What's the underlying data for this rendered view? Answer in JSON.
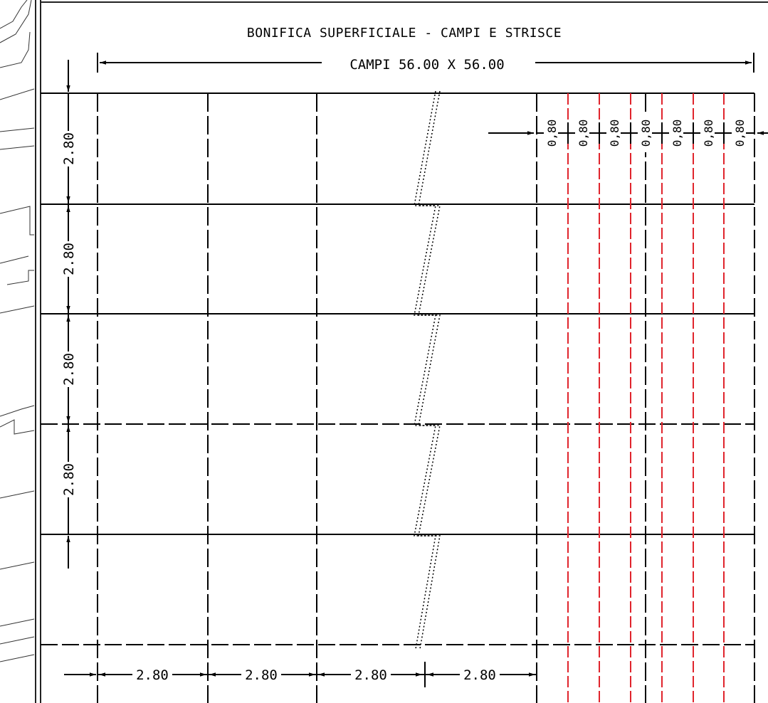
{
  "title": "BONIFICA SUPERFICIALE - CAMPI E STRISCE",
  "overall_dimension": "CAMPI 56.00 X 56.00",
  "row_dimensions": [
    "2.80",
    "2.80",
    "2.80",
    "2.80"
  ],
  "column_dimensions": [
    "2.80",
    "2.80",
    "2.80",
    "2.80"
  ],
  "strip_dimensions": [
    "0,80",
    "0,80",
    "0,80",
    "0,80",
    "0,80",
    "0,80",
    "0,80"
  ],
  "colors": {
    "line": "#000000",
    "strip_line": "#e0242c",
    "background": "#ffffff"
  }
}
